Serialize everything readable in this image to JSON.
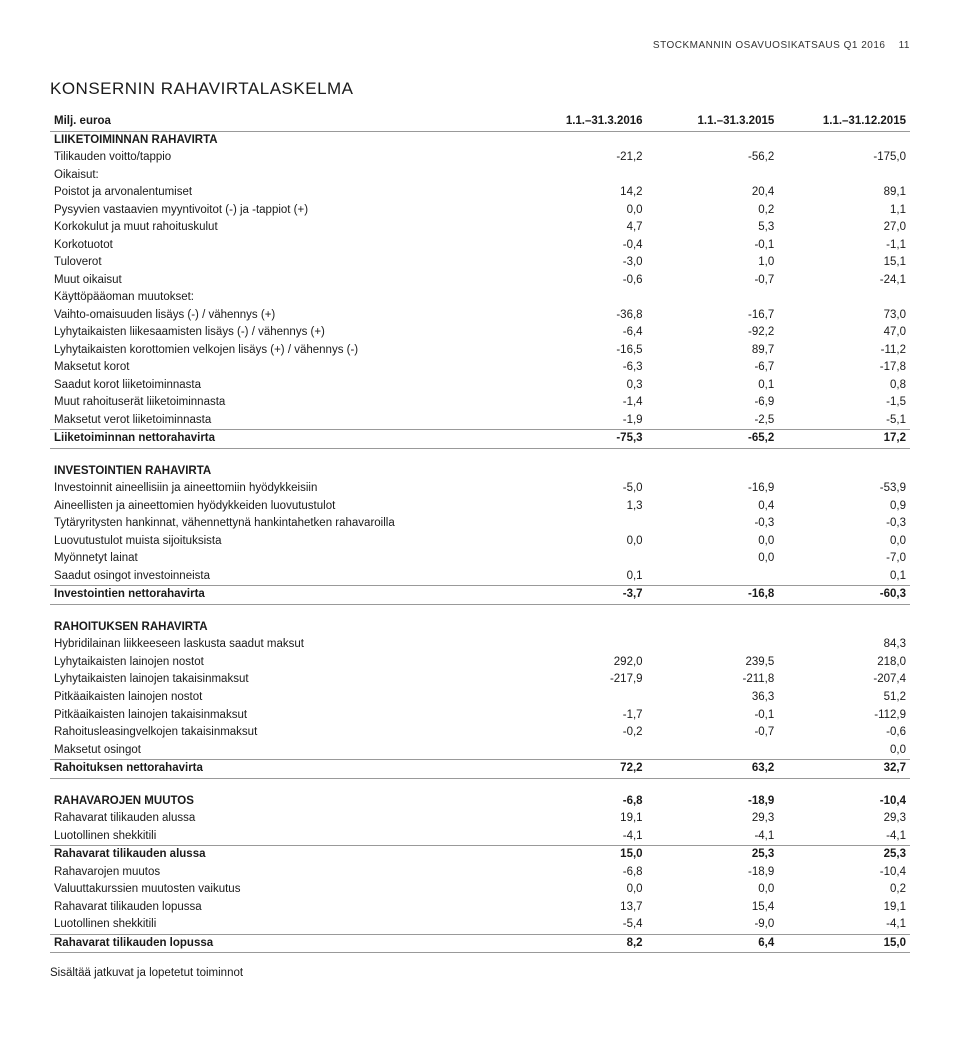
{
  "header": {
    "top_right": "STOCKMANNIN OSAVUOSIKATSAUS Q1 2016",
    "page_num": "11",
    "title": "KONSERNIN RAHAVIRTALASKELMA"
  },
  "columns": {
    "label": "Milj. euroa",
    "c1": "1.1.–31.3.2016",
    "c2": "1.1.–31.3.2015",
    "c3": "1.1.–31.12.2015"
  },
  "footnote": "Sisältää jatkuvat ja lopetetut toiminnot",
  "colors": {
    "text": "#1a1a1a",
    "rule": "#999999",
    "bg": "#ffffff"
  },
  "rows": [
    {
      "t": "section",
      "l": "LIIKETOIMINNAN RAHAVIRTA"
    },
    {
      "t": "row",
      "l": "Tilikauden voitto/tappio",
      "v": [
        "-21,2",
        "-56,2",
        "-175,0"
      ]
    },
    {
      "t": "row",
      "l": "Oikaisut:",
      "v": [
        "",
        "",
        ""
      ]
    },
    {
      "t": "row",
      "l": "Poistot ja arvonalentumiset",
      "v": [
        "14,2",
        "20,4",
        "89,1"
      ]
    },
    {
      "t": "row",
      "l": "Pysyvien vastaavien myyntivoitot (-) ja -tappiot (+)",
      "v": [
        "0,0",
        "0,2",
        "1,1"
      ]
    },
    {
      "t": "row",
      "l": "Korkokulut ja muut rahoituskulut",
      "v": [
        "4,7",
        "5,3",
        "27,0"
      ]
    },
    {
      "t": "row",
      "l": "Korkotuotot",
      "v": [
        "-0,4",
        "-0,1",
        "-1,1"
      ]
    },
    {
      "t": "row",
      "l": "Tuloverot",
      "v": [
        "-3,0",
        "1,0",
        "15,1"
      ]
    },
    {
      "t": "row",
      "l": "Muut oikaisut",
      "v": [
        "-0,6",
        "-0,7",
        "-24,1"
      ]
    },
    {
      "t": "row",
      "l": "Käyttöpääoman muutokset:",
      "v": [
        "",
        "",
        ""
      ]
    },
    {
      "t": "row",
      "l": "Vaihto-omaisuuden lisäys (-) / vähennys (+)",
      "v": [
        "-36,8",
        "-16,7",
        "73,0"
      ]
    },
    {
      "t": "row",
      "l": "Lyhytaikaisten liikesaamisten lisäys (-) / vähennys (+)",
      "v": [
        "-6,4",
        "-92,2",
        "47,0"
      ]
    },
    {
      "t": "row",
      "l": "Lyhytaikaisten korottomien velkojen lisäys (+) / vähennys (-)",
      "v": [
        "-16,5",
        "89,7",
        "-11,2"
      ]
    },
    {
      "t": "row",
      "l": "Maksetut korot",
      "v": [
        "-6,3",
        "-6,7",
        "-17,8"
      ]
    },
    {
      "t": "row",
      "l": "Saadut korot liiketoiminnasta",
      "v": [
        "0,3",
        "0,1",
        "0,8"
      ]
    },
    {
      "t": "row",
      "l": "Muut rahoituserät liiketoiminnasta",
      "v": [
        "-1,4",
        "-6,9",
        "-1,5"
      ]
    },
    {
      "t": "row",
      "l": "Maksetut verot liiketoiminnasta",
      "v": [
        "-1,9",
        "-2,5",
        "-5,1"
      ],
      "line": true
    },
    {
      "t": "total",
      "l": "Liiketoiminnan nettorahavirta",
      "v": [
        "-75,3",
        "-65,2",
        "17,2"
      ],
      "line": true,
      "bold": true
    },
    {
      "t": "spacer"
    },
    {
      "t": "section",
      "l": "INVESTOINTIEN RAHAVIRTA"
    },
    {
      "t": "row",
      "l": "Investoinnit aineellisiin ja aineettomiin hyödykkeisiin",
      "v": [
        "-5,0",
        "-16,9",
        "-53,9"
      ]
    },
    {
      "t": "row",
      "l": "Aineellisten ja aineettomien hyödykkeiden luovutustulot",
      "v": [
        "1,3",
        "0,4",
        "0,9"
      ]
    },
    {
      "t": "row",
      "l": "Tytäryritysten hankinnat, vähennettynä hankintahetken rahavaroilla",
      "v": [
        "",
        "-0,3",
        "-0,3"
      ]
    },
    {
      "t": "row",
      "l": "Luovutustulot muista sijoituksista",
      "v": [
        "0,0",
        "0,0",
        "0,0"
      ]
    },
    {
      "t": "row",
      "l": "Myönnetyt lainat",
      "v": [
        "",
        "0,0",
        "-7,0"
      ]
    },
    {
      "t": "row",
      "l": "Saadut osingot investoinneista",
      "v": [
        "0,1",
        "",
        "0,1"
      ],
      "line": true
    },
    {
      "t": "total",
      "l": "Investointien nettorahavirta",
      "v": [
        "-3,7",
        "-16,8",
        "-60,3"
      ],
      "line": true,
      "bold": true
    },
    {
      "t": "spacer"
    },
    {
      "t": "section",
      "l": "RAHOITUKSEN RAHAVIRTA"
    },
    {
      "t": "row",
      "l": "Hybridilainan liikkeeseen laskusta saadut maksut",
      "v": [
        "",
        "",
        "84,3"
      ]
    },
    {
      "t": "row",
      "l": "Lyhytaikaisten lainojen nostot",
      "v": [
        "292,0",
        "239,5",
        "218,0"
      ]
    },
    {
      "t": "row",
      "l": "Lyhytaikaisten lainojen takaisinmaksut",
      "v": [
        "-217,9",
        "-211,8",
        "-207,4"
      ]
    },
    {
      "t": "row",
      "l": "Pitkäaikaisten lainojen nostot",
      "v": [
        "",
        "36,3",
        "51,2"
      ]
    },
    {
      "t": "row",
      "l": "Pitkäaikaisten lainojen takaisinmaksut",
      "v": [
        "-1,7",
        "-0,1",
        "-112,9"
      ]
    },
    {
      "t": "row",
      "l": "Rahoitusleasingvelkojen takaisinmaksut",
      "v": [
        "-0,2",
        "-0,7",
        "-0,6"
      ]
    },
    {
      "t": "row",
      "l": "Maksetut osingot",
      "v": [
        "",
        "",
        "0,0"
      ],
      "line": true
    },
    {
      "t": "total",
      "l": "Rahoituksen nettorahavirta",
      "v": [
        "72,2",
        "63,2",
        "32,7"
      ],
      "line": true,
      "bold": true
    },
    {
      "t": "spacer"
    },
    {
      "t": "total",
      "l": "RAHAVAROJEN MUUTOS",
      "v": [
        "-6,8",
        "-18,9",
        "-10,4"
      ],
      "bold": true
    },
    {
      "t": "row",
      "l": "Rahavarat tilikauden alussa",
      "v": [
        "19,1",
        "29,3",
        "29,3"
      ]
    },
    {
      "t": "row",
      "l": "Luotollinen shekkitili",
      "v": [
        "-4,1",
        "-4,1",
        "-4,1"
      ],
      "line": true
    },
    {
      "t": "total",
      "l": "Rahavarat tilikauden alussa",
      "v": [
        "15,0",
        "25,3",
        "25,3"
      ],
      "bold": true
    },
    {
      "t": "row",
      "l": "Rahavarojen muutos",
      "v": [
        "-6,8",
        "-18,9",
        "-10,4"
      ]
    },
    {
      "t": "row",
      "l": "Valuuttakurssien muutosten vaikutus",
      "v": [
        "0,0",
        "0,0",
        "0,2"
      ]
    },
    {
      "t": "row",
      "l": "Rahavarat tilikauden lopussa",
      "v": [
        "13,7",
        "15,4",
        "19,1"
      ]
    },
    {
      "t": "row",
      "l": "Luotollinen shekkitili",
      "v": [
        "-5,4",
        "-9,0",
        "-4,1"
      ],
      "line": true
    },
    {
      "t": "total",
      "l": "Rahavarat tilikauden lopussa",
      "v": [
        "8,2",
        "6,4",
        "15,0"
      ],
      "line": true,
      "bold": true
    }
  ]
}
